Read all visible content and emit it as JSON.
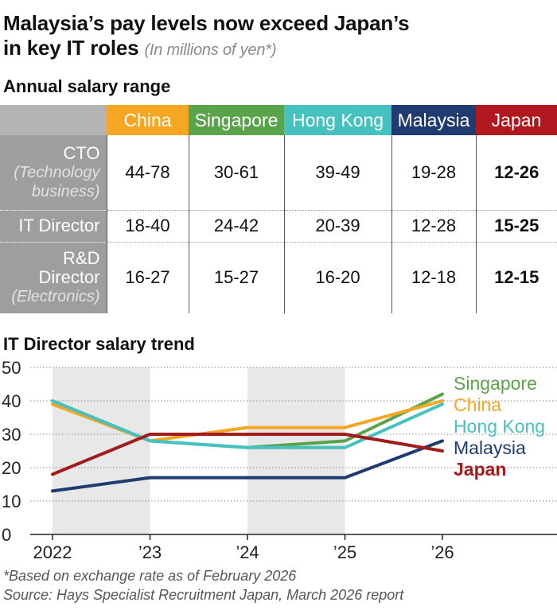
{
  "title": {
    "line1": "Malaysia’s pay levels now exceed Japan’s",
    "line2": "in key IT roles",
    "note": "(In millions of yen*)"
  },
  "salary_table": {
    "heading": "Annual salary range",
    "columns": [
      {
        "label": "China",
        "color": "#f5a623"
      },
      {
        "label": "Singapore",
        "color": "#5aa34a"
      },
      {
        "label": "Hong Kong",
        "color": "#45c2c0"
      },
      {
        "label": "Malaysia",
        "color": "#1f3b70"
      },
      {
        "label": "Japan",
        "color": "#b0171f"
      }
    ],
    "rows": [
      {
        "label": "CTO",
        "sub": "(Technology business)",
        "values": [
          "44-78",
          "30-61",
          "39-49",
          "19-28",
          "12-26"
        ]
      },
      {
        "label": "IT Director",
        "sub": "",
        "values": [
          "18-40",
          "24-42",
          "20-39",
          "12-28",
          "15-25"
        ]
      },
      {
        "label": "R&D Director",
        "sub": "(Electronics)",
        "values": [
          "16-27",
          "15-27",
          "16-20",
          "12-18",
          "12-15"
        ]
      }
    ]
  },
  "chart_data": {
    "type": "line",
    "title": "IT Director salary trend",
    "categories": [
      "2022",
      "’23",
      "’24",
      "’25",
      "’26"
    ],
    "ylim": [
      0,
      50
    ],
    "yticks": [
      0,
      10,
      20,
      30,
      40,
      50
    ],
    "grid": true,
    "shaded_bands": [
      [
        "2022",
        "’23"
      ],
      [
        "’24",
        "’25"
      ]
    ],
    "legend_placement": "right (labels at line ends)",
    "series": [
      {
        "name": "Singapore",
        "color": "#5aa34a",
        "values": [
          40,
          28,
          26,
          28,
          42
        ]
      },
      {
        "name": "China",
        "color": "#f5a623",
        "values": [
          39,
          28,
          32,
          32,
          40
        ]
      },
      {
        "name": "Hong Kong",
        "color": "#45c2c0",
        "values": [
          40,
          28,
          26,
          26,
          39
        ]
      },
      {
        "name": "Malaysia",
        "color": "#1f3b70",
        "values": [
          13,
          17,
          17,
          17,
          28
        ]
      },
      {
        "name": "Japan",
        "color": "#a31c1c",
        "values": [
          18,
          30,
          30,
          30,
          25
        ]
      }
    ]
  },
  "footnotes": {
    "line1": "*Based on exchange rate as of February 2026",
    "line2": "Source: Hays Specialist Recruitment Japan, March 2026 report"
  }
}
